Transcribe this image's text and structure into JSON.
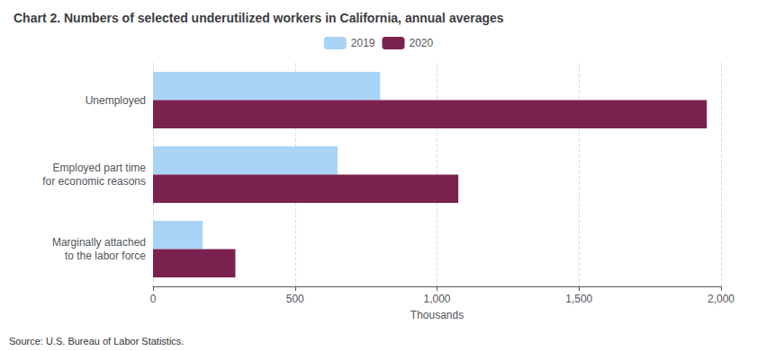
{
  "chart_data": {
    "type": "bar",
    "orientation": "horizontal",
    "title": "Chart 2. Numbers of selected underutilized workers in California, annual averages",
    "categories": [
      "Unemployed",
      "Employed part time\nfor economic reasons",
      "Marginally attached\nto the labor force"
    ],
    "series": [
      {
        "name": "2019",
        "color": "#aad4f5",
        "values": [
          800,
          650,
          175
        ]
      },
      {
        "name": "2020",
        "color": "#7b2150",
        "values": [
          1950,
          1075,
          290
        ]
      }
    ],
    "xlabel": "Thousands",
    "xlim": [
      0,
      2000
    ],
    "xticks": [
      0,
      500,
      {
        "value": 1000,
        "label": "1,000"
      },
      {
        "value": 1500,
        "label": "1,500"
      },
      {
        "value": 2000,
        "label": "2,000"
      }
    ],
    "grid": true,
    "legend": "top",
    "annotations": [
      "Source: U.S. Bureau of Labor Statistics."
    ]
  }
}
